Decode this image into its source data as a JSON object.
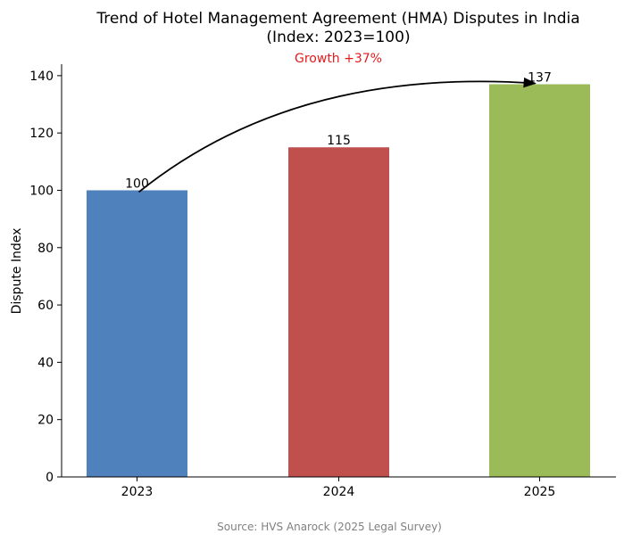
{
  "chart_data": {
    "type": "bar",
    "title_line1": "Trend of Hotel Management Agreement (HMA) Disputes in India",
    "title_line2": "(Index: 2023=100)",
    "annotation": "Growth +37%",
    "categories": [
      "2023",
      "2024",
      "2025"
    ],
    "values": [
      100,
      115,
      137
    ],
    "data_labels": [
      "100",
      "115",
      "137"
    ],
    "colors": [
      "#4f81bd",
      "#c0504d",
      "#9bbb59"
    ],
    "xlabel": "",
    "ylabel": "Dispute Index",
    "ylim": [
      0,
      144
    ],
    "yticks": [
      "0",
      "20",
      "40",
      "60",
      "80",
      "100",
      "120",
      "140"
    ],
    "arrow": {
      "from_category": "2023",
      "from_value": 100,
      "to_category": "2025",
      "to_value": 137
    },
    "source": "Source: HVS Anarock (2025 Legal Survey)",
    "grid": false,
    "legend": "none"
  }
}
